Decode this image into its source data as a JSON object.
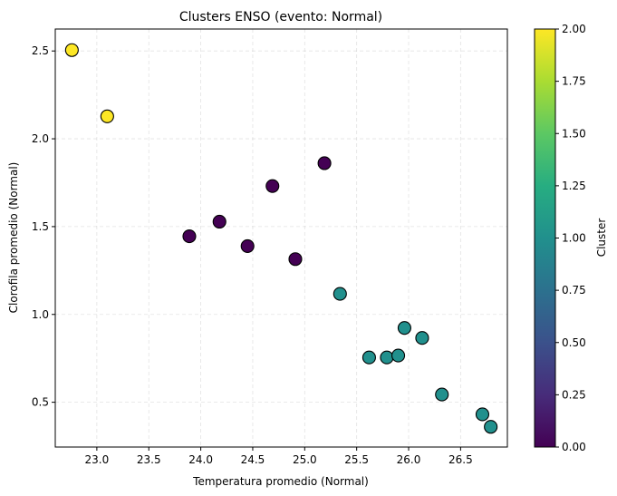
{
  "chart_data": {
    "type": "scatter",
    "title": "Clusters ENSO (evento: Normal)",
    "xlabel": "Temperatura promedio (Normal)",
    "ylabel": "Clorofila promedio (Normal)",
    "xlim": [
      22.6,
      26.95
    ],
    "ylim": [
      0.245,
      2.625
    ],
    "xticks": [
      "23.0",
      "23.5",
      "24.0",
      "24.5",
      "25.0",
      "25.5",
      "26.0",
      "26.5"
    ],
    "xtick_values": [
      23.0,
      23.5,
      24.0,
      24.5,
      25.0,
      25.5,
      26.0,
      26.5
    ],
    "yticks": [
      "0.5",
      "1.0",
      "1.5",
      "2.0",
      "2.5"
    ],
    "ytick_values": [
      0.5,
      1.0,
      1.5,
      2.0,
      2.5
    ],
    "grid": true,
    "colormap": "viridis",
    "colorbar": {
      "label": "Cluster",
      "range": [
        0.0,
        2.0
      ],
      "ticks": [
        "0.00",
        "0.25",
        "0.50",
        "0.75",
        "1.00",
        "1.25",
        "1.50",
        "1.75",
        "2.00"
      ],
      "tick_values": [
        0.0,
        0.25,
        0.5,
        0.75,
        1.0,
        1.25,
        1.5,
        1.75,
        2.0
      ]
    },
    "points": [
      {
        "x": 22.76,
        "y": 2.505,
        "cluster": 2
      },
      {
        "x": 23.1,
        "y": 2.128,
        "cluster": 2
      },
      {
        "x": 23.89,
        "y": 1.445,
        "cluster": 0
      },
      {
        "x": 24.18,
        "y": 1.528,
        "cluster": 0
      },
      {
        "x": 24.45,
        "y": 1.389,
        "cluster": 0
      },
      {
        "x": 24.69,
        "y": 1.731,
        "cluster": 0
      },
      {
        "x": 24.91,
        "y": 1.315,
        "cluster": 0
      },
      {
        "x": 25.19,
        "y": 1.861,
        "cluster": 0
      },
      {
        "x": 25.34,
        "y": 1.117,
        "cluster": 1
      },
      {
        "x": 25.62,
        "y": 0.755,
        "cluster": 1
      },
      {
        "x": 25.79,
        "y": 0.755,
        "cluster": 1
      },
      {
        "x": 25.9,
        "y": 0.766,
        "cluster": 1
      },
      {
        "x": 25.96,
        "y": 0.923,
        "cluster": 1
      },
      {
        "x": 26.13,
        "y": 0.866,
        "cluster": 1
      },
      {
        "x": 26.32,
        "y": 0.544,
        "cluster": 1
      },
      {
        "x": 26.71,
        "y": 0.431,
        "cluster": 1
      },
      {
        "x": 26.79,
        "y": 0.36,
        "cluster": 1
      }
    ]
  }
}
